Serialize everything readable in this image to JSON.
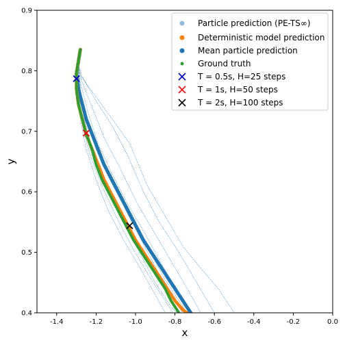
{
  "chart_data": {
    "type": "scatter",
    "xlabel": "x",
    "ylabel": "y",
    "xlim": [
      -1.5,
      0.0
    ],
    "ylim": [
      0.4,
      0.9
    ],
    "xticks": [
      "-1.4",
      "-1.2",
      "-1.0",
      "-0.8",
      "-0.6",
      "-0.4",
      "-0.2",
      "0.0"
    ],
    "xtick_values": [
      -1.4,
      -1.2,
      -1.0,
      -0.8,
      -0.6,
      -0.4,
      -0.2,
      0.0
    ],
    "yticks": [
      "0.4",
      "0.5",
      "0.6",
      "0.7",
      "0.8",
      "0.9"
    ],
    "ytick_values": [
      0.4,
      0.5,
      0.6,
      0.7,
      0.8,
      0.9
    ],
    "grid": false,
    "legend_position": "top-right",
    "colors": {
      "particle": "#1f77b4",
      "deterministic": "#ff7f0e",
      "mean": "#1f77b4",
      "ground_truth": "#2ca02c",
      "marker_05": "#0000cc",
      "marker_1": "#ff0000",
      "marker_2": "#000000"
    },
    "series": [
      {
        "name": "Particle prediction (PE-TS∞)",
        "style": "particles",
        "trajectories": [
          [
            [
              -1.28,
              0.835
            ],
            [
              -1.29,
              0.81
            ],
            [
              -1.28,
              0.793
            ],
            [
              -1.23,
              0.77
            ],
            [
              -1.14,
              0.73
            ],
            [
              -1.03,
              0.68
            ],
            [
              -0.94,
              0.61
            ],
            [
              -0.85,
              0.56
            ],
            [
              -0.76,
              0.51
            ],
            [
              -0.66,
              0.47
            ],
            [
              -0.58,
              0.44
            ],
            [
              -0.5,
              0.4
            ]
          ],
          [
            [
              -1.28,
              0.835
            ],
            [
              -1.29,
              0.81
            ],
            [
              -1.27,
              0.79
            ],
            [
              -1.2,
              0.75
            ],
            [
              -1.12,
              0.71
            ],
            [
              -1.04,
              0.66
            ],
            [
              -0.96,
              0.6
            ],
            [
              -0.88,
              0.55
            ],
            [
              -0.78,
              0.5
            ],
            [
              -0.69,
              0.45
            ],
            [
              -0.6,
              0.4
            ]
          ],
          [
            [
              -1.28,
              0.835
            ],
            [
              -1.29,
              0.81
            ],
            [
              -1.27,
              0.78
            ],
            [
              -1.22,
              0.74
            ],
            [
              -1.16,
              0.69
            ],
            [
              -1.08,
              0.64
            ],
            [
              -0.99,
              0.58
            ],
            [
              -0.9,
              0.53
            ],
            [
              -0.81,
              0.48
            ],
            [
              -0.72,
              0.43
            ],
            [
              -0.67,
              0.4
            ]
          ],
          [
            [
              -1.28,
              0.835
            ],
            [
              -1.29,
              0.81
            ],
            [
              -1.28,
              0.78
            ],
            [
              -1.24,
              0.73
            ],
            [
              -1.19,
              0.68
            ],
            [
              -1.12,
              0.63
            ],
            [
              -1.04,
              0.58
            ],
            [
              -0.95,
              0.53
            ],
            [
              -0.85,
              0.47
            ],
            [
              -0.76,
              0.42
            ],
            [
              -0.72,
              0.4
            ]
          ],
          [
            [
              -1.28,
              0.835
            ],
            [
              -1.29,
              0.81
            ],
            [
              -1.28,
              0.77
            ],
            [
              -1.26,
              0.72
            ],
            [
              -1.22,
              0.67
            ],
            [
              -1.16,
              0.62
            ],
            [
              -1.08,
              0.56
            ],
            [
              -0.98,
              0.51
            ],
            [
              -0.88,
              0.46
            ],
            [
              -0.8,
              0.42
            ],
            [
              -0.76,
              0.4
            ]
          ],
          [
            [
              -1.28,
              0.835
            ],
            [
              -1.29,
              0.81
            ],
            [
              -1.28,
              0.76
            ],
            [
              -1.25,
              0.72
            ],
            [
              -1.2,
              0.67
            ],
            [
              -1.13,
              0.62
            ],
            [
              -1.05,
              0.57
            ],
            [
              -0.97,
              0.52
            ],
            [
              -0.89,
              0.47
            ],
            [
              -0.81,
              0.43
            ],
            [
              -0.76,
              0.4
            ]
          ],
          [
            [
              -1.28,
              0.835
            ],
            [
              -1.29,
              0.81
            ],
            [
              -1.29,
              0.77
            ],
            [
              -1.27,
              0.71
            ],
            [
              -1.23,
              0.66
            ],
            [
              -1.17,
              0.61
            ],
            [
              -1.1,
              0.56
            ],
            [
              -1.02,
              0.51
            ],
            [
              -0.93,
              0.46
            ],
            [
              -0.85,
              0.42
            ],
            [
              -0.81,
              0.4
            ]
          ],
          [
            [
              -1.28,
              0.835
            ],
            [
              -1.29,
              0.81
            ],
            [
              -1.29,
              0.76
            ],
            [
              -1.26,
              0.7
            ],
            [
              -1.21,
              0.65
            ],
            [
              -1.14,
              0.6
            ],
            [
              -1.06,
              0.55
            ],
            [
              -0.98,
              0.5
            ],
            [
              -0.9,
              0.45
            ],
            [
              -0.82,
              0.41
            ],
            [
              -0.79,
              0.4
            ]
          ],
          [
            [
              -1.28,
              0.835
            ],
            [
              -1.29,
              0.81
            ],
            [
              -1.28,
              0.76
            ],
            [
              -1.24,
              0.71
            ],
            [
              -1.18,
              0.66
            ],
            [
              -1.1,
              0.61
            ],
            [
              -1.02,
              0.56
            ],
            [
              -0.94,
              0.51
            ],
            [
              -0.86,
              0.46
            ],
            [
              -0.78,
              0.42
            ],
            [
              -0.74,
              0.4
            ]
          ],
          [
            [
              -1.28,
              0.835
            ],
            [
              -1.29,
              0.81
            ],
            [
              -1.3,
              0.77
            ],
            [
              -1.28,
              0.72
            ],
            [
              -1.25,
              0.67
            ],
            [
              -1.2,
              0.62
            ],
            [
              -1.14,
              0.57
            ],
            [
              -1.06,
              0.52
            ],
            [
              -0.97,
              0.47
            ],
            [
              -0.9,
              0.43
            ],
            [
              -0.85,
              0.4
            ]
          ]
        ]
      },
      {
        "name": "Deterministic model prediction",
        "style": "dots",
        "points": [
          [
            -1.28,
            0.835
          ],
          [
            -1.29,
            0.815
          ],
          [
            -1.3,
            0.795
          ],
          [
            -1.3,
            0.77
          ],
          [
            -1.29,
            0.745
          ],
          [
            -1.27,
            0.72
          ],
          [
            -1.25,
            0.695
          ],
          [
            -1.22,
            0.67
          ],
          [
            -1.19,
            0.645
          ],
          [
            -1.16,
            0.62
          ],
          [
            -1.12,
            0.595
          ],
          [
            -1.08,
            0.57
          ],
          [
            -1.04,
            0.545
          ],
          [
            -1.0,
            0.52
          ],
          [
            -0.96,
            0.5
          ],
          [
            -0.92,
            0.48
          ],
          [
            -0.88,
            0.46
          ],
          [
            -0.84,
            0.44
          ],
          [
            -0.8,
            0.42
          ],
          [
            -0.76,
            0.405
          ],
          [
            -0.74,
            0.4
          ]
        ]
      },
      {
        "name": "Mean particle prediction",
        "style": "dots",
        "points": [
          [
            -1.28,
            0.835
          ],
          [
            -1.29,
            0.815
          ],
          [
            -1.3,
            0.795
          ],
          [
            -1.29,
            0.77
          ],
          [
            -1.27,
            0.745
          ],
          [
            -1.25,
            0.72
          ],
          [
            -1.22,
            0.695
          ],
          [
            -1.19,
            0.67
          ],
          [
            -1.16,
            0.645
          ],
          [
            -1.12,
            0.62
          ],
          [
            -1.08,
            0.595
          ],
          [
            -1.04,
            0.57
          ],
          [
            -1.0,
            0.545
          ],
          [
            -0.96,
            0.52
          ],
          [
            -0.92,
            0.5
          ],
          [
            -0.88,
            0.48
          ],
          [
            -0.84,
            0.46
          ],
          [
            -0.8,
            0.44
          ],
          [
            -0.76,
            0.42
          ],
          [
            -0.73,
            0.405
          ],
          [
            -0.72,
            0.4
          ]
        ]
      },
      {
        "name": "Ground truth",
        "style": "dots",
        "points": [
          [
            -1.28,
            0.835
          ],
          [
            -1.29,
            0.815
          ],
          [
            -1.3,
            0.795
          ],
          [
            -1.3,
            0.77
          ],
          [
            -1.29,
            0.745
          ],
          [
            -1.27,
            0.72
          ],
          [
            -1.25,
            0.695
          ],
          [
            -1.22,
            0.67
          ],
          [
            -1.2,
            0.645
          ],
          [
            -1.17,
            0.62
          ],
          [
            -1.13,
            0.595
          ],
          [
            -1.09,
            0.57
          ],
          [
            -1.05,
            0.545
          ],
          [
            -1.01,
            0.52
          ],
          [
            -0.97,
            0.5
          ],
          [
            -0.93,
            0.48
          ],
          [
            -0.89,
            0.46
          ],
          [
            -0.85,
            0.44
          ],
          [
            -0.82,
            0.42
          ],
          [
            -0.79,
            0.405
          ],
          [
            -0.78,
            0.4
          ]
        ]
      },
      {
        "name": "T = 0.5s, H=25 steps",
        "style": "x-marker",
        "points": [
          [
            -1.3,
            0.787
          ]
        ]
      },
      {
        "name": "T = 1s, H=50 steps",
        "style": "x-marker",
        "points": [
          [
            -1.25,
            0.697
          ]
        ]
      },
      {
        "name": "T = 2s, H=100 steps",
        "style": "x-marker",
        "points": [
          [
            -1.03,
            0.544
          ]
        ]
      }
    ]
  }
}
